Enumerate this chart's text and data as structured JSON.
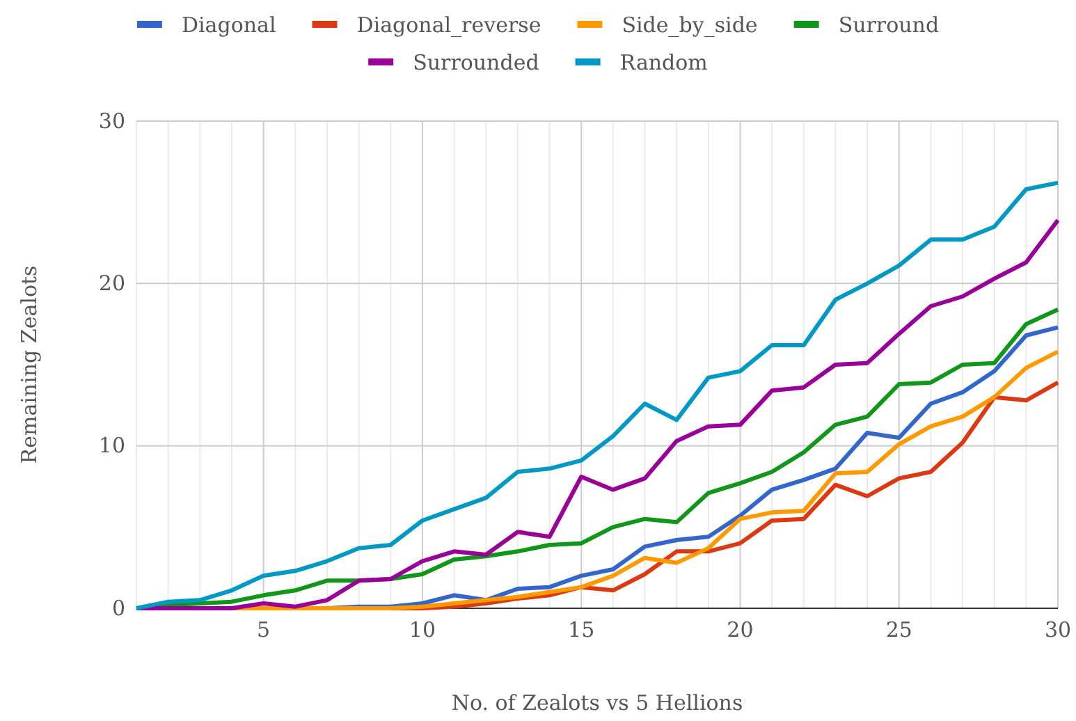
{
  "chart_data": {
    "type": "line",
    "xlabel": "No. of Zealots vs 5 Hellions",
    "ylabel": "Remaining Zealots",
    "x": [
      1,
      2,
      3,
      4,
      5,
      6,
      7,
      8,
      9,
      10,
      11,
      12,
      13,
      14,
      15,
      16,
      17,
      18,
      19,
      20,
      21,
      22,
      23,
      24,
      25,
      26,
      27,
      28,
      29,
      30
    ],
    "xlim": [
      1,
      30
    ],
    "xticks": [
      {
        "value": 1,
        "label": null
      },
      {
        "value": 2,
        "label": null
      },
      {
        "value": 3,
        "label": null
      },
      {
        "value": 4,
        "label": null
      },
      5,
      {
        "value": 6,
        "label": null
      },
      {
        "value": 7,
        "label": null
      },
      {
        "value": 8,
        "label": null
      },
      {
        "value": 9,
        "label": null
      },
      10,
      {
        "value": 11,
        "label": null
      },
      {
        "value": 12,
        "label": null
      },
      {
        "value": 13,
        "label": null
      },
      {
        "value": 14,
        "label": null
      },
      15,
      {
        "value": 16,
        "label": null
      },
      {
        "value": 17,
        "label": null
      },
      {
        "value": 18,
        "label": null
      },
      {
        "value": 19,
        "label": null
      },
      20,
      {
        "value": 21,
        "label": null
      },
      {
        "value": 22,
        "label": null
      },
      {
        "value": 23,
        "label": null
      },
      {
        "value": 24,
        "label": null
      },
      25,
      {
        "value": 26,
        "label": null
      },
      {
        "value": 27,
        "label": null
      },
      {
        "value": 28,
        "label": null
      },
      {
        "value": 29,
        "label": null
      },
      30
    ],
    "ylim": [
      0,
      30
    ],
    "yticks": [
      0,
      10,
      20,
      30
    ],
    "grid": true,
    "legend": "top",
    "marker": "none",
    "line_style": "solid",
    "series": [
      {
        "name": "Diagonal",
        "color": "#3366cc",
        "values": [
          0,
          0,
          0,
          0,
          0,
          0,
          0,
          0.1,
          0.1,
          0.3,
          0.8,
          0.5,
          1.2,
          1.3,
          2.0,
          2.4,
          3.8,
          4.2,
          4.4,
          5.7,
          7.3,
          7.9,
          8.6,
          10.8,
          10.5,
          12.6,
          13.3,
          14.6,
          16.8,
          17.3
        ]
      },
      {
        "name": "Diagonal_reverse",
        "color": "#dc3912",
        "values": [
          null,
          null,
          0,
          0,
          0,
          0,
          0,
          0,
          0,
          0,
          0.1,
          0.3,
          0.6,
          0.8,
          1.3,
          1.1,
          2.1,
          3.5,
          3.5,
          4.0,
          5.4,
          5.5,
          7.6,
          6.9,
          8.0,
          8.4,
          10.2,
          13.0,
          12.8,
          13.9
        ]
      },
      {
        "name": "Side_by_side",
        "color": "#ff9900",
        "values": [
          null,
          null,
          0,
          0,
          0,
          0,
          0,
          0,
          0,
          0.1,
          0.3,
          0.5,
          0.7,
          1.0,
          1.3,
          2.0,
          3.1,
          2.8,
          3.7,
          5.5,
          5.9,
          6.0,
          8.3,
          8.4,
          10.1,
          11.2,
          11.8,
          13.0,
          14.8,
          15.8
        ]
      },
      {
        "name": "Surround",
        "color": "#109618",
        "values": [
          0,
          0.2,
          0.3,
          0.4,
          0.8,
          1.1,
          1.7,
          1.7,
          1.8,
          2.1,
          3.0,
          3.2,
          3.5,
          3.9,
          4.0,
          5.0,
          5.5,
          5.3,
          7.1,
          7.7,
          8.4,
          9.6,
          11.3,
          11.8,
          13.8,
          13.9,
          15.0,
          15.1,
          17.5,
          18.4
        ]
      },
      {
        "name": "Surrounded",
        "color": "#990099",
        "values": [
          0,
          0,
          0,
          0,
          0.3,
          0.1,
          0.5,
          1.7,
          1.8,
          2.9,
          3.5,
          3.3,
          4.7,
          4.4,
          8.1,
          7.3,
          8.0,
          10.3,
          11.2,
          11.3,
          13.4,
          13.6,
          15.0,
          15.1,
          16.9,
          18.6,
          19.2,
          20.3,
          21.3,
          23.9
        ]
      },
      {
        "name": "Random",
        "color": "#0099c6",
        "values": [
          0,
          0.4,
          0.5,
          1.1,
          2.0,
          2.3,
          2.9,
          3.7,
          3.9,
          5.4,
          6.1,
          6.8,
          8.4,
          8.6,
          9.1,
          10.6,
          12.6,
          11.6,
          14.2,
          14.6,
          16.2,
          16.2,
          19.0,
          20.0,
          21.1,
          22.7,
          22.7,
          23.5,
          25.8,
          26.2
        ]
      }
    ]
  }
}
